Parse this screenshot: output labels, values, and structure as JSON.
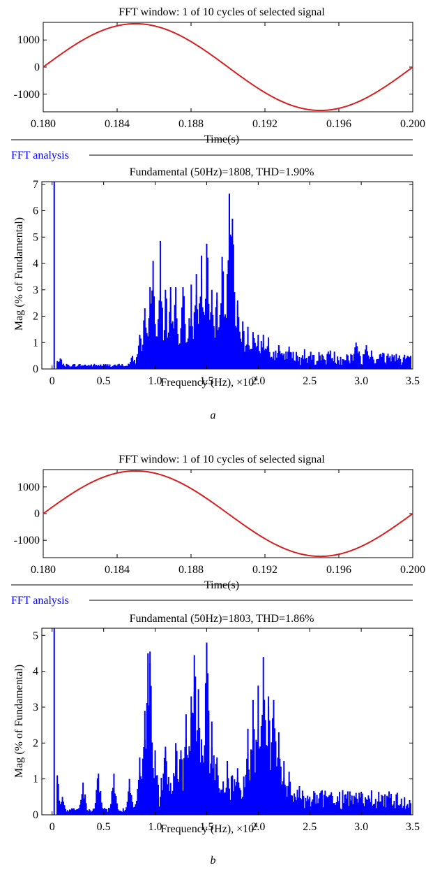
{
  "panels": [
    {
      "letter": "a",
      "time_plot": {
        "title": "FFT window: 1 of 10 cycles of selected signal",
        "xlabel": "Time(s)",
        "y_ticks": [
          "1000",
          "0",
          "-1000"
        ],
        "x_ticks": [
          "0.180",
          "0.184",
          "0.188",
          "0.192",
          "0.196",
          "0.200"
        ]
      },
      "fft_section_label": "FFT analysis",
      "fft_plot": {
        "title": "Fundamental (50Hz)=1808, THD=1.90%",
        "ylabel": "Mag (% of Fundamental)",
        "xlabel": "Frequency (Hz), ×10",
        "xlabel_exp": "4",
        "y_ticks": [
          "0",
          "1",
          "2",
          "3",
          "4",
          "5",
          "6",
          "7"
        ],
        "x_ticks": [
          "0",
          "0.5",
          "1.0",
          "1.5",
          "2.0",
          "2.5",
          "3.0",
          "3.5"
        ]
      }
    },
    {
      "letter": "b",
      "time_plot": {
        "title": "FFT window: 1 of 10 cycles of selected signal",
        "xlabel": "Time(s)",
        "y_ticks": [
          "1000",
          "0",
          "-1000"
        ],
        "x_ticks": [
          "0.180",
          "0.184",
          "0.188",
          "0.192",
          "0.196",
          "0.200"
        ]
      },
      "fft_section_label": "FFT analysis",
      "fft_plot": {
        "title": "Fundamental (50Hz)=1803, THD=1.86%",
        "ylabel": "Mag (% of Fundamental)",
        "xlabel": "Frequency (Hz), ×10",
        "xlabel_exp": "4",
        "y_ticks": [
          "0",
          "1",
          "2",
          "3",
          "4",
          "5"
        ],
        "x_ticks": [
          "0",
          "0.5",
          "1.0",
          "1.5",
          "2.0",
          "2.5",
          "3.0",
          "3.5"
        ]
      }
    }
  ],
  "chart_data": [
    {
      "type": "line",
      "title": "FFT window: 1 of 10 cycles of selected signal",
      "xlabel": "Time(s)",
      "ylabel": "",
      "xlim": [
        0.18,
        0.2
      ],
      "ylim": [
        -1650,
        1650
      ],
      "series_color": "#d81e1e",
      "signal": {
        "form": "sine",
        "amplitude": 1600,
        "frequency_hz": 50,
        "t_start": 0.18
      }
    },
    {
      "type": "bar",
      "title": "Fundamental (50Hz)=1808, THD=1.90%",
      "xlabel": "Frequency (Hz), ×10^4",
      "ylabel": "Mag (% of Fundamental)",
      "xlim": [
        -0.1,
        3.5
      ],
      "ylim": [
        0,
        7.1
      ],
      "bar_color": "#0000ff",
      "fundamental_hz": 50,
      "peaks_1e4hz": [
        [
          0.02,
          7.1
        ],
        [
          0.05,
          0.3
        ],
        [
          0.08,
          0.4
        ],
        [
          0.78,
          0.5
        ],
        [
          0.85,
          1.3
        ],
        [
          0.9,
          2.3
        ],
        [
          0.95,
          3.1
        ],
        [
          0.98,
          4.1
        ],
        [
          1.05,
          4.85
        ],
        [
          1.1,
          3.0
        ],
        [
          1.15,
          3.1
        ],
        [
          1.2,
          3.1
        ],
        [
          1.27,
          3.1
        ],
        [
          1.35,
          3.2
        ],
        [
          1.4,
          3.6
        ],
        [
          1.45,
          4.3
        ],
        [
          1.5,
          4.75
        ],
        [
          1.55,
          3.0
        ],
        [
          1.6,
          2.9
        ],
        [
          1.65,
          4.25
        ],
        [
          1.7,
          3.6
        ],
        [
          1.72,
          6.65
        ],
        [
          1.75,
          5.7
        ],
        [
          1.8,
          2.6
        ],
        [
          1.85,
          1.8
        ],
        [
          1.9,
          1.6
        ],
        [
          1.95,
          1.4
        ],
        [
          2.0,
          1.3
        ],
        [
          2.05,
          1.3
        ],
        [
          2.1,
          1.2
        ],
        [
          2.2,
          0.9
        ],
        [
          2.3,
          0.85
        ],
        [
          2.45,
          0.75
        ],
        [
          2.7,
          0.7
        ],
        [
          2.95,
          1.0
        ],
        [
          3.05,
          0.9
        ],
        [
          3.1,
          0.7
        ],
        [
          3.3,
          0.55
        ],
        [
          3.45,
          0.5
        ]
      ]
    },
    {
      "type": "line",
      "title": "FFT window: 1 of 10 cycles of selected signal",
      "xlabel": "Time(s)",
      "ylabel": "",
      "xlim": [
        0.18,
        0.2
      ],
      "ylim": [
        -1650,
        1650
      ],
      "series_color": "#d81e1e",
      "signal": {
        "form": "sine",
        "amplitude": 1600,
        "frequency_hz": 50,
        "t_start": 0.18
      }
    },
    {
      "type": "bar",
      "title": "Fundamental (50Hz)=1803, THD=1.86%",
      "xlabel": "Frequency (Hz), ×10^4",
      "ylabel": "Mag (% of Fundamental)",
      "xlim": [
        -0.1,
        3.5
      ],
      "ylim": [
        0,
        5.2
      ],
      "bar_color": "#0000ff",
      "fundamental_hz": 50,
      "peaks_1e4hz": [
        [
          0.02,
          5.2
        ],
        [
          0.05,
          1.1
        ],
        [
          0.1,
          0.5
        ],
        [
          0.3,
          0.9
        ],
        [
          0.45,
          1.15
        ],
        [
          0.6,
          1.15
        ],
        [
          0.75,
          1.0
        ],
        [
          0.85,
          1.6
        ],
        [
          0.9,
          2.9
        ],
        [
          0.93,
          4.5
        ],
        [
          0.95,
          4.55
        ],
        [
          1.0,
          1.8
        ],
        [
          1.1,
          1.9
        ],
        [
          1.2,
          2.0
        ],
        [
          1.25,
          1.8
        ],
        [
          1.3,
          2.8
        ],
        [
          1.35,
          3.3
        ],
        [
          1.38,
          4.45
        ],
        [
          1.42,
          3.5
        ],
        [
          1.45,
          2.1
        ],
        [
          1.5,
          4.8
        ],
        [
          1.55,
          2.6
        ],
        [
          1.6,
          1.6
        ],
        [
          1.7,
          1.5
        ],
        [
          1.8,
          1.3
        ],
        [
          1.9,
          2.4
        ],
        [
          1.95,
          3.2
        ],
        [
          2.0,
          3.6
        ],
        [
          2.05,
          4.4
        ],
        [
          2.1,
          3.3
        ],
        [
          2.15,
          3.2
        ],
        [
          2.2,
          2.3
        ],
        [
          2.25,
          1.5
        ],
        [
          2.3,
          1.2
        ],
        [
          2.4,
          0.8
        ],
        [
          2.6,
          0.6
        ],
        [
          3.0,
          0.6
        ],
        [
          3.25,
          0.4
        ],
        [
          3.45,
          0.3
        ]
      ]
    }
  ]
}
